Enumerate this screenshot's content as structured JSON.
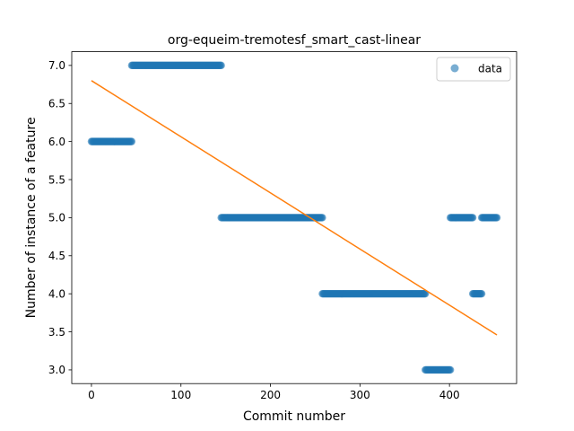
{
  "chart_data": {
    "type": "scatter",
    "title": "org-equeim-tremotesf_smart_cast-linear",
    "xlabel": "Commit number",
    "ylabel": "Number of instance of a feature",
    "xlim": [
      -22,
      475
    ],
    "ylim": [
      2.82,
      7.18
    ],
    "xticks": [
      0,
      100,
      200,
      300,
      400
    ],
    "yticks": [
      3.0,
      3.5,
      4.0,
      4.5,
      5.0,
      5.5,
      6.0,
      6.5,
      7.0
    ],
    "xtick_labels": [
      "0",
      "100",
      "200",
      "300",
      "400"
    ],
    "ytick_labels": [
      "3.0",
      "3.5",
      "4.0",
      "4.5",
      "5.0",
      "5.5",
      "6.0",
      "6.5",
      "7.0"
    ],
    "grid": false,
    "legend": {
      "position": "top-right",
      "entries": [
        "data"
      ]
    },
    "series": [
      {
        "name": "data",
        "kind": "scatter",
        "color": "#1f77b4",
        "segments": [
          {
            "x_start": 0,
            "x_end": 45,
            "y": 6
          },
          {
            "x_start": 45,
            "x_end": 145,
            "y": 7
          },
          {
            "x_start": 145,
            "x_end": 258,
            "y": 5
          },
          {
            "x_start": 258,
            "x_end": 373,
            "y": 4
          },
          {
            "x_start": 373,
            "x_end": 401,
            "y": 3
          },
          {
            "x_start": 401,
            "x_end": 426,
            "y": 5
          },
          {
            "x_start": 426,
            "x_end": 436,
            "y": 4
          },
          {
            "x_start": 436,
            "x_end": 453,
            "y": 5
          }
        ]
      },
      {
        "name": "",
        "kind": "line",
        "color": "#ff7f0e",
        "x": [
          0,
          453
        ],
        "y": [
          6.8,
          3.46
        ]
      }
    ]
  }
}
